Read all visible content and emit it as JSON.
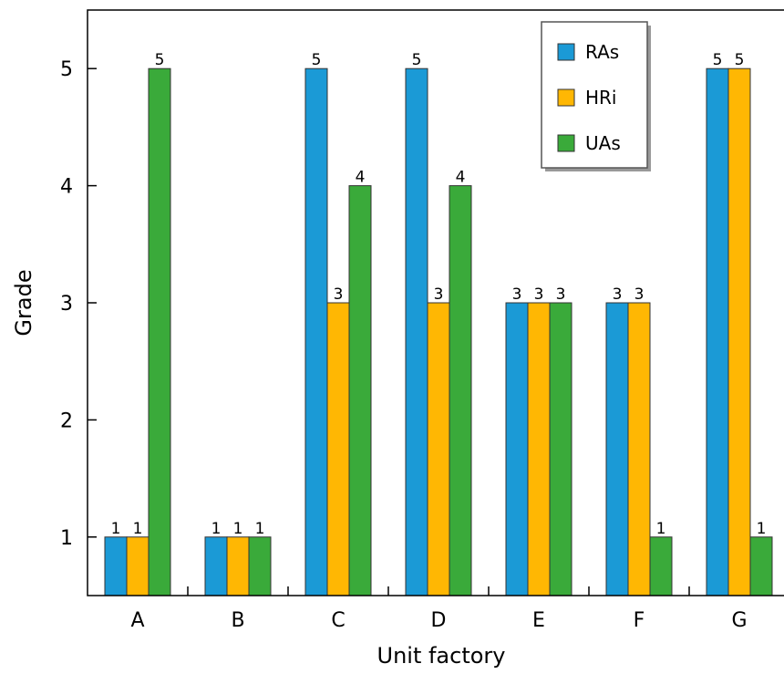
{
  "chart_data": {
    "type": "bar",
    "title": "",
    "xlabel": "Unit factory",
    "ylabel": "Grade",
    "categories": [
      "A",
      "B",
      "C",
      "D",
      "E",
      "F",
      "G"
    ],
    "series": [
      {
        "name": "RAs",
        "color": "#1b9ad6",
        "values": [
          1,
          1,
          5,
          5,
          3,
          3,
          5
        ]
      },
      {
        "name": "HRi",
        "color": "#ffb703",
        "values": [
          1,
          1,
          3,
          3,
          3,
          3,
          5
        ]
      },
      {
        "name": "UAs",
        "color": "#3aaa3a",
        "values": [
          5,
          1,
          4,
          4,
          3,
          1,
          1
        ]
      }
    ],
    "yticks": [
      1,
      2,
      3,
      4,
      5
    ],
    "ylim": [
      0.5,
      5.5
    ],
    "grid": false,
    "legend": "top-right",
    "data_labels": true
  }
}
